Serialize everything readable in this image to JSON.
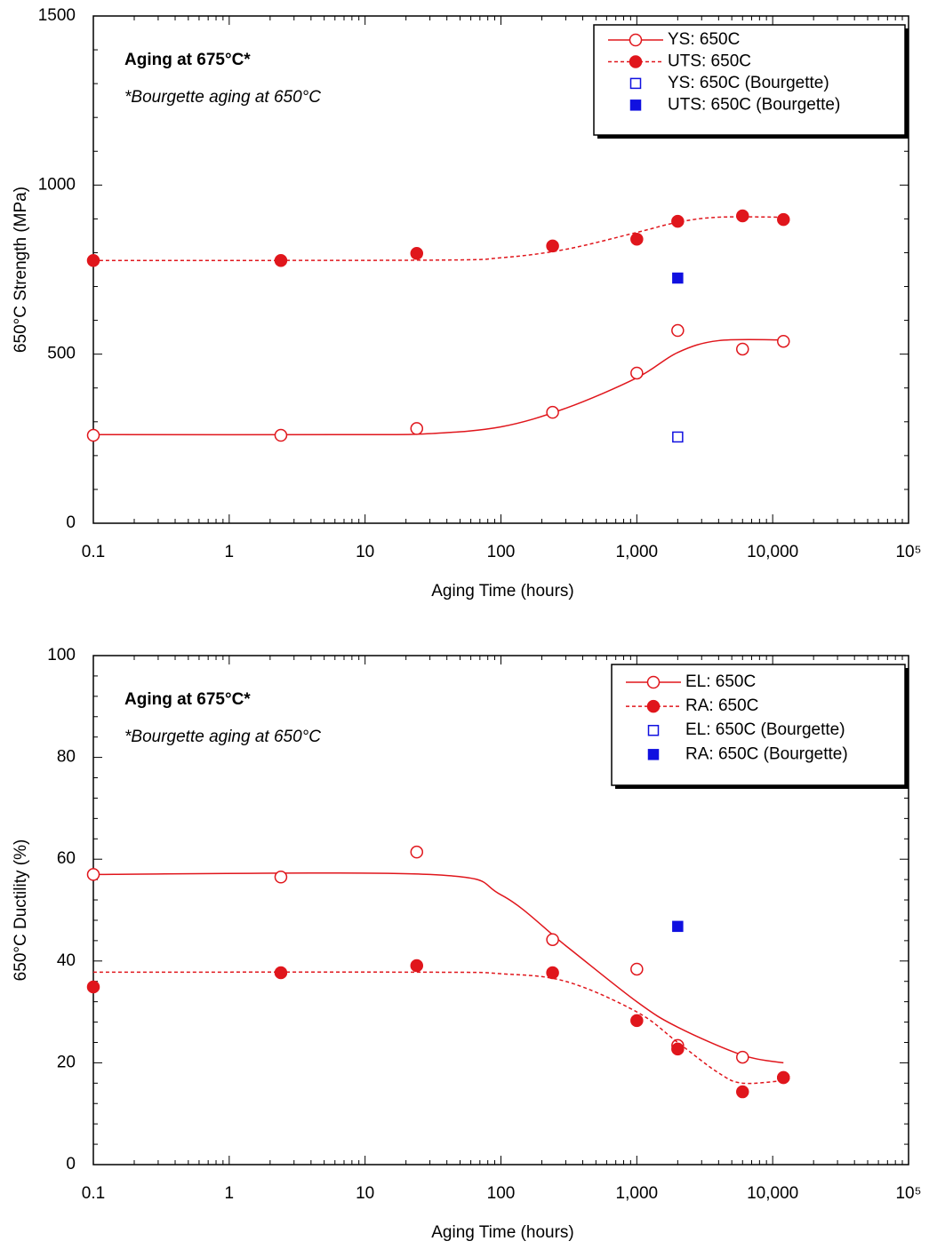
{
  "chart_data": [
    {
      "type": "scatter",
      "log_x": true,
      "xlim": [
        0.1,
        100000
      ],
      "xticks": [
        0.1,
        1,
        10,
        100,
        {
          "value": 1000,
          "label": "1,000"
        },
        {
          "value": 10000,
          "label": "10,000"
        },
        {
          "value": 100000,
          "label": "10⁵"
        }
      ],
      "ylim": [
        0,
        1500
      ],
      "yticks": [
        0,
        500,
        1000,
        1500
      ],
      "grid": false,
      "legend_loc": "upper right",
      "xlabel": "Aging Time (hours)",
      "ylabel": "650°C Strength (MPa)",
      "annotations": [
        {
          "text": "Aging at 675°C*",
          "color": "#e0161c"
        },
        {
          "text": "*Bourgette aging at 650°C",
          "color": "#1f1fd0"
        }
      ],
      "series": [
        {
          "name": "YS: 650C",
          "color": "#e0161c",
          "marker": "open-circle",
          "line": "solid",
          "x": [
            0.1,
            2.4,
            24,
            240,
            1000,
            2000,
            6000,
            12000
          ],
          "values": [
            260,
            260,
            280,
            328,
            444,
            570,
            515,
            538
          ],
          "curve": {
            "x": [
              0.1,
              10,
              30,
              100,
              300,
              1000,
              2000,
              4000,
              12000
            ],
            "values": [
              262,
              262,
              265,
              285,
              340,
              430,
              505,
              540,
              542
            ]
          }
        },
        {
          "name": "UTS: 650C",
          "color": "#e0161c",
          "marker": "filled-circle",
          "line": "dashed",
          "x": [
            0.1,
            2.4,
            24,
            240,
            1000,
            2000,
            6000,
            12000
          ],
          "values": [
            777,
            777,
            798,
            820,
            840,
            893,
            909,
            898
          ],
          "curve": {
            "x": [
              0.1,
              30,
              100,
              300,
              1000,
              2000,
              4000,
              12000
            ],
            "values": [
              777,
              778,
              785,
              810,
              860,
              890,
              905,
              905
            ]
          }
        },
        {
          "name": "YS: 650C (Bourgette)",
          "color": "#1010e0",
          "marker": "open-square",
          "line": null,
          "x": [
            2000
          ],
          "values": [
            255
          ]
        },
        {
          "name": "UTS: 650C (Bourgette)",
          "color": "#1010e0",
          "marker": "filled-square",
          "line": null,
          "x": [
            2000
          ],
          "values": [
            725
          ]
        }
      ]
    },
    {
      "type": "scatter",
      "log_x": true,
      "xlim": [
        0.1,
        100000
      ],
      "xticks": [
        0.1,
        1,
        10,
        100,
        {
          "value": 1000,
          "label": "1,000"
        },
        {
          "value": 10000,
          "label": "10,000"
        },
        {
          "value": 100000,
          "label": "10⁵"
        }
      ],
      "ylim": [
        0,
        100
      ],
      "yticks": [
        0,
        20,
        40,
        60,
        80,
        100
      ],
      "grid": false,
      "legend_loc": "upper right",
      "xlabel": "Aging Time (hours)",
      "ylabel": "650°C Ductility (%)",
      "annotations": [
        {
          "text": "Aging at 675°C*",
          "color": "#e0161c"
        },
        {
          "text": "*Bourgette aging at 650°C",
          "color": "#1f1fd0"
        }
      ],
      "series": [
        {
          "name": "EL: 650C",
          "color": "#e0161c",
          "marker": "open-circle",
          "line": "solid",
          "x": [
            0.1,
            2.4,
            24,
            240,
            1000,
            2000,
            6000,
            12000
          ],
          "values": [
            57,
            56.5,
            61.4,
            44.2,
            38.4,
            23.4,
            21.1,
            17.1
          ],
          "curve": {
            "x": [
              0.1,
              30,
              100,
              300,
              1000,
              2000,
              6000,
              12000
            ],
            "values": [
              57,
              57,
              53,
              43,
              32,
              27,
              21.5,
              20
            ]
          }
        },
        {
          "name": "RA: 650C",
          "color": "#e0161c",
          "marker": "filled-circle",
          "line": "dashed",
          "x": [
            0.1,
            2.4,
            24,
            240,
            1000,
            2000,
            6000,
            12000
          ],
          "values": [
            34.9,
            37.7,
            39.1,
            37.7,
            28.3,
            22.7,
            14.3,
            17.1
          ],
          "curve": {
            "x": [
              0.1,
              30,
              100,
              300,
              1000,
              2000,
              4000,
              6000,
              12000
            ],
            "values": [
              37.8,
              37.8,
              37.5,
              36,
              30,
              24,
              18,
              16,
              16.5
            ]
          }
        },
        {
          "name": "EL: 650C (Bourgette)",
          "color": "#1010e0",
          "marker": "open-square",
          "line": null,
          "x": [],
          "values": []
        },
        {
          "name": "RA: 650C (Bourgette)",
          "color": "#1010e0",
          "marker": "filled-square",
          "line": null,
          "x": [
            2000
          ],
          "values": [
            46.8
          ]
        }
      ]
    }
  ]
}
